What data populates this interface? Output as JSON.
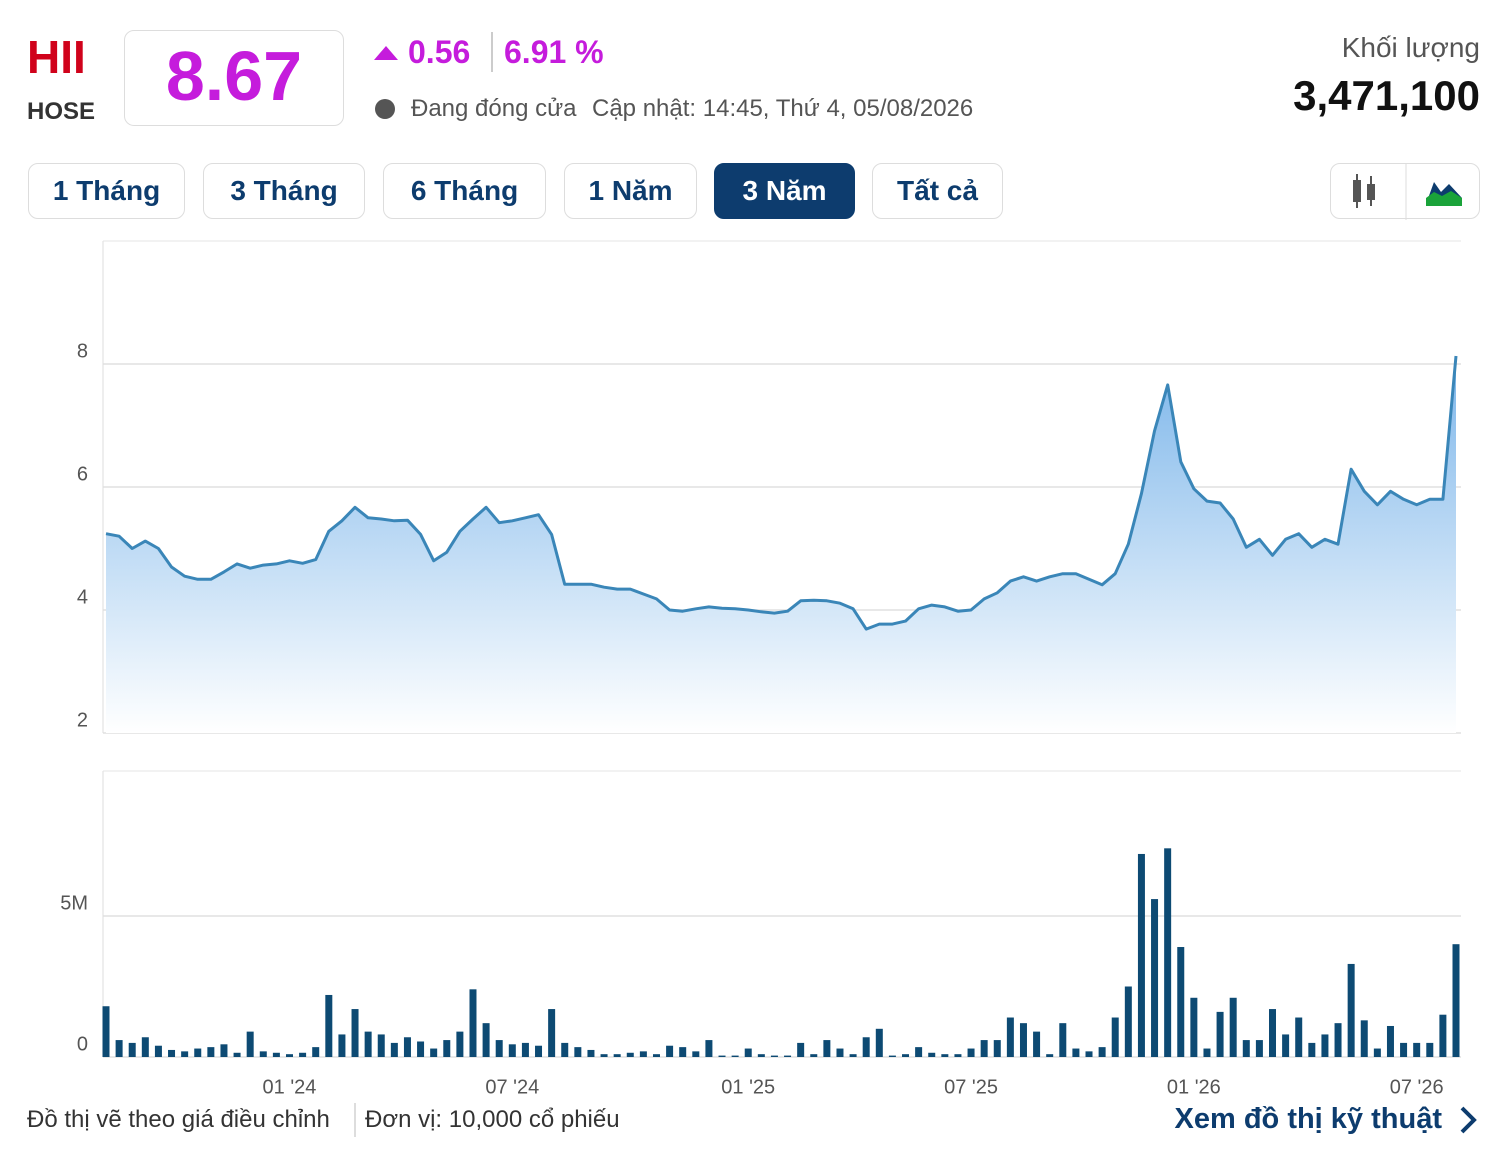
{
  "header": {
    "ticker": "HII",
    "exchange": "HOSE",
    "price": "8.67",
    "change": "0.56",
    "change_pct": "6.91 %",
    "status": "Đang đóng cửa",
    "updated": "Cập nhật: 14:45, Thứ 4, 05/08/2026",
    "volume_label": "Khối lượng",
    "volume": "3,471,100"
  },
  "buttons": [
    "1 Tháng",
    "3 Tháng",
    "6 Tháng",
    "1 Năm",
    "3 Năm",
    "Tất cả"
  ],
  "active_button_index": 4,
  "footer": {
    "note": "Đồ thị vẽ theo giá điều chỉnh",
    "unit": "Đơn vị: 10,000 cổ phiếu",
    "link": "Xem đồ thị kỹ thuật"
  },
  "chart_data": [
    {
      "type": "area",
      "color": "#3a86b8",
      "ylim": [
        2,
        10
      ],
      "yticks": [
        2,
        4,
        6,
        8
      ],
      "grid": true,
      "values": [
        5.24,
        5.2,
        5.0,
        5.12,
        5.0,
        4.7,
        4.55,
        4.5,
        4.5,
        4.62,
        4.75,
        4.68,
        4.73,
        4.75,
        4.8,
        4.76,
        4.82,
        5.28,
        5.45,
        5.67,
        5.5,
        5.48,
        5.45,
        5.46,
        5.23,
        4.8,
        4.94,
        5.28,
        5.48,
        5.67,
        5.42,
        5.45,
        5.5,
        5.55,
        5.23,
        4.42,
        4.42,
        4.42,
        4.37,
        4.34,
        4.34,
        4.26,
        4.18,
        4.0,
        3.98,
        4.02,
        4.05,
        4.03,
        4.02,
        4.0,
        3.97,
        3.95,
        3.98,
        4.15,
        4.16,
        4.15,
        4.11,
        4.02,
        3.69,
        3.77,
        3.77,
        3.82,
        4.02,
        4.08,
        4.05,
        3.98,
        4.0,
        4.18,
        4.28,
        4.47,
        4.54,
        4.47,
        4.54,
        4.59,
        4.59,
        4.5,
        4.41,
        4.59,
        5.07,
        5.89,
        6.91,
        7.66,
        6.41,
        5.97,
        5.77,
        5.74,
        5.48,
        5.02,
        5.15,
        4.89,
        5.15,
        5.24,
        5.02,
        5.15,
        5.07,
        6.29,
        5.93,
        5.71,
        5.93,
        5.8,
        5.71,
        5.8,
        5.8,
        8.13
      ]
    },
    {
      "type": "bar",
      "color": "#0d4a73",
      "ylim": [
        0,
        10
      ],
      "yticks": [
        0,
        {
          "value": 5,
          "label": "5M"
        }
      ],
      "grid": true,
      "categories": [
        null,
        null,
        null,
        null,
        null,
        null,
        null,
        null,
        null,
        null,
        null,
        null,
        null,
        null,
        "01 '24",
        null,
        null,
        null,
        null,
        null,
        null,
        null,
        null,
        null,
        null,
        null,
        null,
        null,
        null,
        null,
        null,
        "07 '24",
        null,
        null,
        null,
        null,
        null,
        null,
        null,
        null,
        null,
        null,
        null,
        null,
        null,
        null,
        null,
        null,
        null,
        "01 '25",
        null,
        null,
        null,
        null,
        null,
        null,
        null,
        null,
        null,
        null,
        null,
        null,
        null,
        null,
        null,
        null,
        "07 '25",
        null,
        null,
        null,
        null,
        null,
        null,
        null,
        null,
        null,
        null,
        null,
        null,
        null,
        null,
        null,
        null,
        "01 '26",
        null,
        null,
        null,
        null,
        null,
        null,
        null,
        null,
        null,
        null,
        null,
        null,
        null,
        null,
        null,
        null,
        "07 '26",
        null,
        null,
        null
      ],
      "values": [
        1.8,
        0.6,
        0.5,
        0.7,
        0.4,
        0.25,
        0.2,
        0.3,
        0.35,
        0.45,
        0.15,
        0.9,
        0.2,
        0.15,
        0.1,
        0.15,
        0.35,
        2.2,
        0.8,
        1.7,
        0.9,
        0.8,
        0.5,
        0.7,
        0.55,
        0.3,
        0.6,
        0.9,
        2.4,
        1.2,
        0.6,
        0.45,
        0.5,
        0.4,
        1.7,
        0.5,
        0.35,
        0.25,
        0.1,
        0.1,
        0.15,
        0.2,
        0.1,
        0.4,
        0.35,
        0.2,
        0.6,
        0.05,
        0.05,
        0.3,
        0.1,
        0.05,
        0.05,
        0.5,
        0.1,
        0.6,
        0.3,
        0.1,
        0.7,
        1.0,
        0.05,
        0.1,
        0.35,
        0.15,
        0.1,
        0.1,
        0.3,
        0.6,
        0.6,
        1.4,
        1.2,
        0.9,
        0.1,
        1.2,
        0.3,
        0.2,
        0.35,
        1.4,
        2.5,
        7.2,
        5.6,
        7.4,
        3.9,
        2.1,
        0.3,
        1.6,
        2.1,
        0.6,
        0.6,
        1.7,
        0.8,
        1.4,
        0.5,
        0.8,
        1.2,
        3.3,
        1.3,
        0.3,
        1.1,
        0.5,
        0.5,
        0.5,
        1.5,
        4.0
      ]
    }
  ]
}
